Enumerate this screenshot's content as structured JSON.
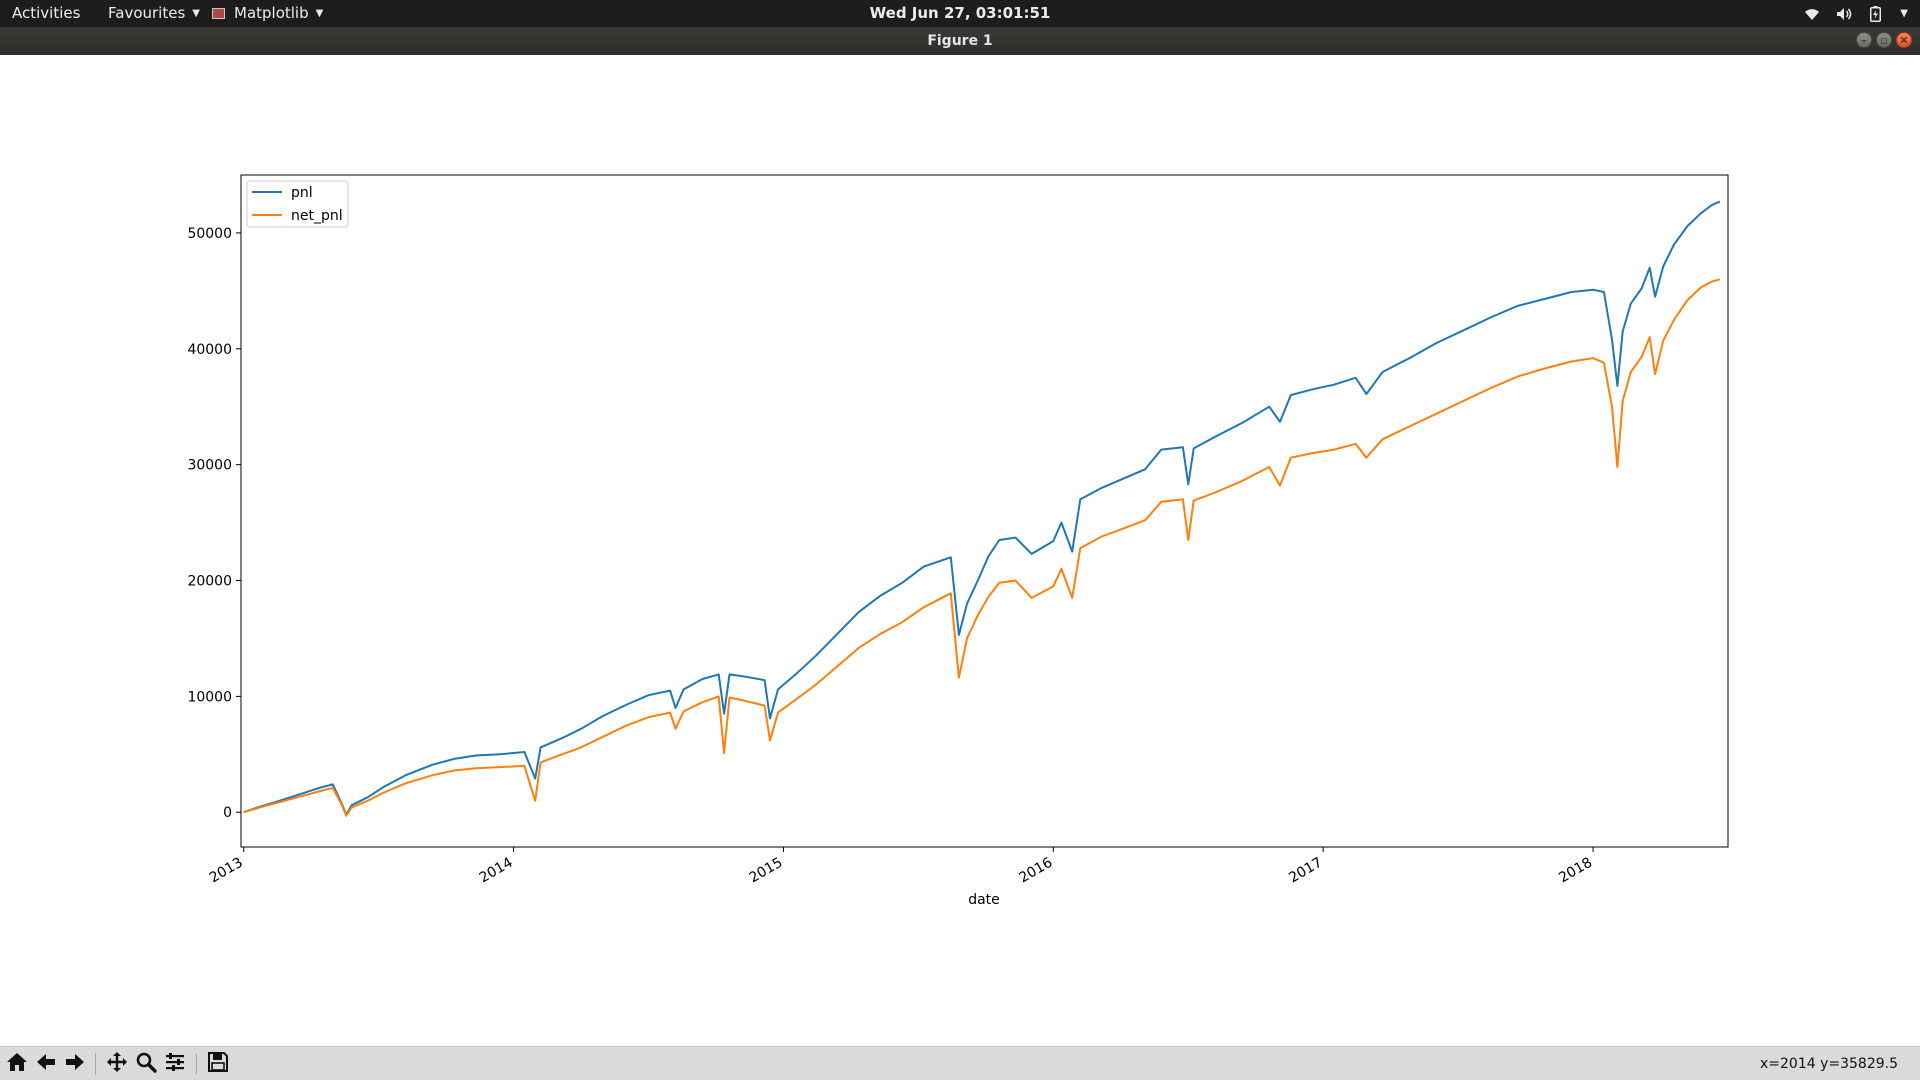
{
  "topbar": {
    "activities": "Activities",
    "favourites": "Favourites",
    "app_name": "Matplotlib",
    "clock": "Wed Jun 27, 03:01:51",
    "tray_icons": [
      "wifi-icon",
      "volume-icon",
      "battery-icon",
      "menu-caret-icon"
    ]
  },
  "window": {
    "title": "Figure 1",
    "buttons": [
      "minimize",
      "maximize",
      "close"
    ]
  },
  "chart_data": {
    "type": "line",
    "xlabel": "date",
    "ylabel": "",
    "x_ticks": [
      "2013",
      "2014",
      "2015",
      "2016",
      "2017",
      "2018"
    ],
    "y_ticks": [
      "0",
      "10000",
      "20000",
      "30000",
      "40000",
      "50000"
    ],
    "xlim": [
      2012.99,
      2018.5
    ],
    "ylim": [
      -3000,
      55000
    ],
    "grid": false,
    "legend": "upper-left",
    "series": [
      {
        "name": "pnl",
        "color": "#1f77b4",
        "points": [
          [
            2013.0,
            0
          ],
          [
            2013.05,
            400
          ],
          [
            2013.12,
            900
          ],
          [
            2013.2,
            1500
          ],
          [
            2013.28,
            2100
          ],
          [
            2013.33,
            2400
          ],
          [
            2013.36,
            900
          ],
          [
            2013.38,
            -200
          ],
          [
            2013.4,
            600
          ],
          [
            2013.46,
            1300
          ],
          [
            2013.52,
            2200
          ],
          [
            2013.6,
            3200
          ],
          [
            2013.7,
            4100
          ],
          [
            2013.78,
            4600
          ],
          [
            2013.86,
            4900
          ],
          [
            2013.95,
            5000
          ],
          [
            2014.04,
            5200
          ],
          [
            2014.08,
            2900
          ],
          [
            2014.1,
            5600
          ],
          [
            2014.18,
            6400
          ],
          [
            2014.25,
            7200
          ],
          [
            2014.33,
            8300
          ],
          [
            2014.42,
            9300
          ],
          [
            2014.5,
            10100
          ],
          [
            2014.58,
            10500
          ],
          [
            2014.6,
            9000
          ],
          [
            2014.63,
            10600
          ],
          [
            2014.7,
            11500
          ],
          [
            2014.76,
            11900
          ],
          [
            2014.78,
            8500
          ],
          [
            2014.8,
            11900
          ],
          [
            2014.86,
            11700
          ],
          [
            2014.93,
            11400
          ],
          [
            2014.95,
            8100
          ],
          [
            2014.98,
            10600
          ],
          [
            2015.05,
            12000
          ],
          [
            2015.12,
            13500
          ],
          [
            2015.2,
            15400
          ],
          [
            2015.28,
            17300
          ],
          [
            2015.36,
            18700
          ],
          [
            2015.44,
            19800
          ],
          [
            2015.52,
            21200
          ],
          [
            2015.62,
            22000
          ],
          [
            2015.65,
            15300
          ],
          [
            2015.68,
            18000
          ],
          [
            2015.72,
            20000
          ],
          [
            2015.76,
            22100
          ],
          [
            2015.8,
            23500
          ],
          [
            2015.86,
            23700
          ],
          [
            2015.92,
            22300
          ],
          [
            2016.0,
            23400
          ],
          [
            2016.03,
            25000
          ],
          [
            2016.07,
            22500
          ],
          [
            2016.1,
            27000
          ],
          [
            2016.18,
            28000
          ],
          [
            2016.26,
            28800
          ],
          [
            2016.34,
            29600
          ],
          [
            2016.4,
            31300
          ],
          [
            2016.48,
            31500
          ],
          [
            2016.5,
            28300
          ],
          [
            2016.52,
            31400
          ],
          [
            2016.6,
            32400
          ],
          [
            2016.7,
            33600
          ],
          [
            2016.8,
            35000
          ],
          [
            2016.84,
            33700
          ],
          [
            2016.88,
            36000
          ],
          [
            2016.96,
            36500
          ],
          [
            2017.04,
            36900
          ],
          [
            2017.12,
            37500
          ],
          [
            2017.16,
            36100
          ],
          [
            2017.22,
            38000
          ],
          [
            2017.32,
            39200
          ],
          [
            2017.42,
            40500
          ],
          [
            2017.52,
            41600
          ],
          [
            2017.62,
            42700
          ],
          [
            2017.72,
            43700
          ],
          [
            2017.82,
            44300
          ],
          [
            2017.92,
            44900
          ],
          [
            2018.0,
            45100
          ],
          [
            2018.04,
            44900
          ],
          [
            2018.07,
            40800
          ],
          [
            2018.09,
            36800
          ],
          [
            2018.11,
            41500
          ],
          [
            2018.14,
            43900
          ],
          [
            2018.18,
            45200
          ],
          [
            2018.21,
            47000
          ],
          [
            2018.23,
            44500
          ],
          [
            2018.26,
            47100
          ],
          [
            2018.3,
            49000
          ],
          [
            2018.35,
            50600
          ],
          [
            2018.4,
            51700
          ],
          [
            2018.44,
            52400
          ],
          [
            2018.47,
            52700
          ]
        ]
      },
      {
        "name": "net_pnl",
        "color": "#ff7f0e",
        "points": [
          [
            2013.0,
            0
          ],
          [
            2013.05,
            350
          ],
          [
            2013.12,
            800
          ],
          [
            2013.2,
            1300
          ],
          [
            2013.28,
            1800
          ],
          [
            2013.33,
            2100
          ],
          [
            2013.36,
            800
          ],
          [
            2013.38,
            -300
          ],
          [
            2013.4,
            400
          ],
          [
            2013.46,
            1000
          ],
          [
            2013.52,
            1700
          ],
          [
            2013.6,
            2500
          ],
          [
            2013.7,
            3200
          ],
          [
            2013.78,
            3600
          ],
          [
            2013.86,
            3800
          ],
          [
            2013.95,
            3900
          ],
          [
            2014.04,
            4000
          ],
          [
            2014.08,
            1000
          ],
          [
            2014.1,
            4300
          ],
          [
            2014.18,
            5000
          ],
          [
            2014.25,
            5600
          ],
          [
            2014.33,
            6500
          ],
          [
            2014.42,
            7500
          ],
          [
            2014.5,
            8200
          ],
          [
            2014.58,
            8600
          ],
          [
            2014.6,
            7200
          ],
          [
            2014.63,
            8700
          ],
          [
            2014.7,
            9500
          ],
          [
            2014.76,
            10000
          ],
          [
            2014.78,
            5100
          ],
          [
            2014.8,
            9900
          ],
          [
            2014.86,
            9600
          ],
          [
            2014.93,
            9200
          ],
          [
            2014.95,
            6200
          ],
          [
            2014.98,
            8600
          ],
          [
            2015.05,
            9800
          ],
          [
            2015.12,
            11000
          ],
          [
            2015.2,
            12600
          ],
          [
            2015.28,
            14200
          ],
          [
            2015.36,
            15400
          ],
          [
            2015.44,
            16400
          ],
          [
            2015.52,
            17700
          ],
          [
            2015.62,
            18900
          ],
          [
            2015.65,
            11600
          ],
          [
            2015.68,
            15000
          ],
          [
            2015.72,
            17000
          ],
          [
            2015.76,
            18600
          ],
          [
            2015.8,
            19800
          ],
          [
            2015.86,
            20000
          ],
          [
            2015.92,
            18500
          ],
          [
            2016.0,
            19500
          ],
          [
            2016.03,
            21000
          ],
          [
            2016.07,
            18500
          ],
          [
            2016.1,
            22800
          ],
          [
            2016.18,
            23800
          ],
          [
            2016.26,
            24500
          ],
          [
            2016.34,
            25200
          ],
          [
            2016.4,
            26800
          ],
          [
            2016.48,
            27000
          ],
          [
            2016.5,
            23500
          ],
          [
            2016.52,
            26900
          ],
          [
            2016.6,
            27600
          ],
          [
            2016.7,
            28600
          ],
          [
            2016.8,
            29800
          ],
          [
            2016.84,
            28200
          ],
          [
            2016.88,
            30600
          ],
          [
            2016.96,
            31000
          ],
          [
            2017.04,
            31300
          ],
          [
            2017.12,
            31800
          ],
          [
            2017.16,
            30600
          ],
          [
            2017.22,
            32200
          ],
          [
            2017.32,
            33300
          ],
          [
            2017.42,
            34400
          ],
          [
            2017.52,
            35500
          ],
          [
            2017.62,
            36600
          ],
          [
            2017.72,
            37600
          ],
          [
            2017.82,
            38300
          ],
          [
            2017.92,
            38900
          ],
          [
            2018.0,
            39200
          ],
          [
            2018.04,
            38800
          ],
          [
            2018.07,
            35000
          ],
          [
            2018.09,
            29800
          ],
          [
            2018.11,
            35500
          ],
          [
            2018.14,
            38000
          ],
          [
            2018.18,
            39300
          ],
          [
            2018.21,
            41000
          ],
          [
            2018.23,
            37800
          ],
          [
            2018.26,
            40700
          ],
          [
            2018.3,
            42500
          ],
          [
            2018.35,
            44200
          ],
          [
            2018.4,
            45300
          ],
          [
            2018.44,
            45800
          ],
          [
            2018.47,
            46000
          ]
        ]
      }
    ]
  },
  "toolbar": {
    "tools": [
      "home-icon",
      "back-icon",
      "forward-icon",
      "pan-icon",
      "zoom-icon",
      "subplots-icon",
      "save-icon"
    ],
    "coords": "x=2014 y=35829.5"
  }
}
